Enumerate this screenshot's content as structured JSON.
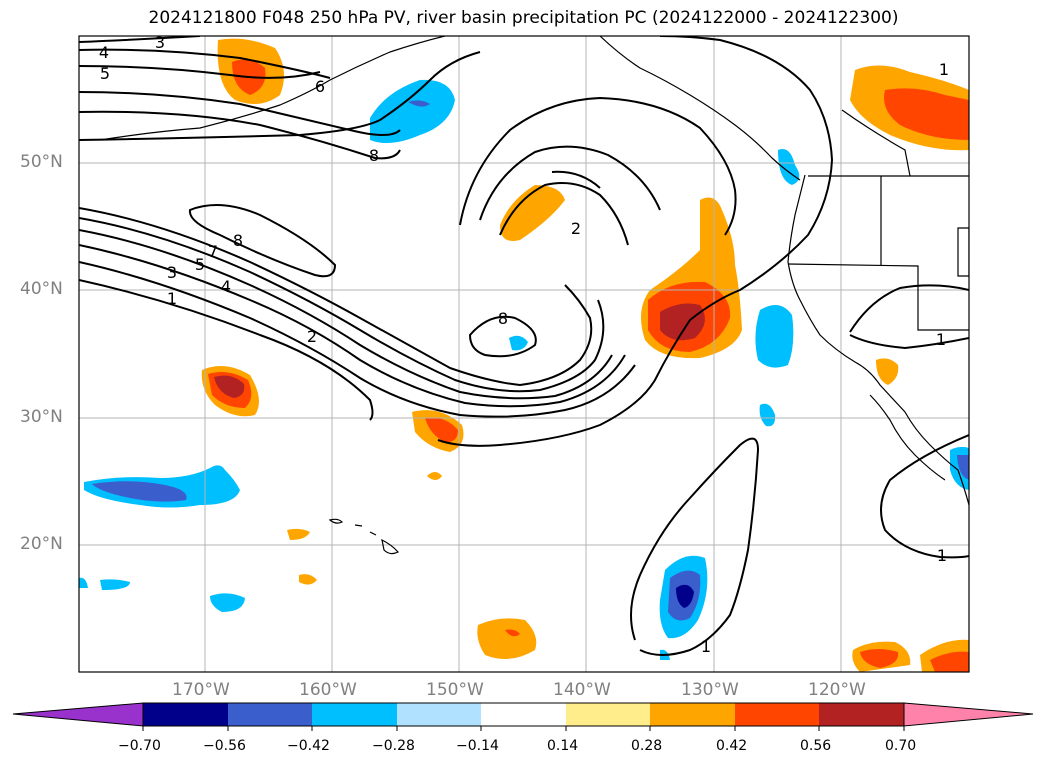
{
  "title": "2024121800 F048 250 hPa PV, river basin precipitation PC (2024122000 - 2024122300)",
  "lat_labels": [
    "50°N",
    "40°N",
    "30°N",
    "20°N"
  ],
  "lon_labels": [
    "170°W",
    "160°W",
    "150°W",
    "140°W",
    "130°W",
    "120°W"
  ],
  "contour_labels": [
    "3",
    "4",
    "5",
    "6",
    "8",
    "7",
    "5",
    "4",
    "3",
    "1",
    "8",
    "2",
    "2",
    "8",
    "1",
    "1",
    "1",
    "1"
  ],
  "colorbar": {
    "tick_labels": [
      "−0.70",
      "−0.56",
      "−0.42",
      "−0.28",
      "−0.14",
      "0.14",
      "0.28",
      "0.42",
      "0.56",
      "0.70"
    ],
    "colors": [
      "#9932cc",
      "#00008b",
      "#3a5fcd",
      "#00bfff",
      "#b0e2ff",
      "#ffffff",
      "#ffec8b",
      "#ffa500",
      "#ff4500",
      "#b22222",
      "#ff82ab"
    ]
  }
}
